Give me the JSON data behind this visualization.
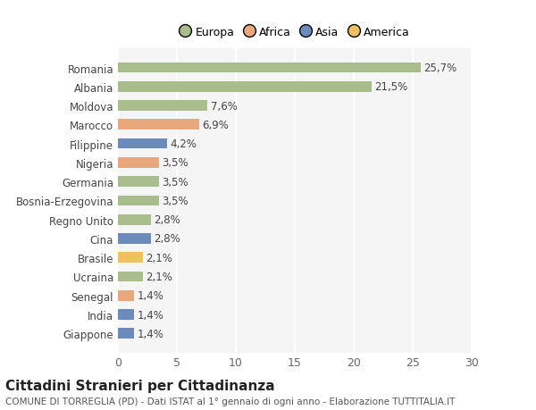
{
  "categories": [
    "Giappone",
    "India",
    "Senegal",
    "Ucraina",
    "Brasile",
    "Cina",
    "Regno Unito",
    "Bosnia-Erzegovina",
    "Germania",
    "Nigeria",
    "Filippine",
    "Marocco",
    "Moldova",
    "Albania",
    "Romania"
  ],
  "values": [
    1.4,
    1.4,
    1.4,
    2.1,
    2.1,
    2.8,
    2.8,
    3.5,
    3.5,
    3.5,
    4.2,
    6.9,
    7.6,
    21.5,
    25.7
  ],
  "labels": [
    "1,4%",
    "1,4%",
    "1,4%",
    "2,1%",
    "2,1%",
    "2,8%",
    "2,8%",
    "3,5%",
    "3,5%",
    "3,5%",
    "4,2%",
    "6,9%",
    "7,6%",
    "21,5%",
    "25,7%"
  ],
  "colors": [
    "#6b8cba",
    "#6b8cba",
    "#e8a87c",
    "#a8bc8c",
    "#f0c060",
    "#6b8cba",
    "#a8bc8c",
    "#a8bc8c",
    "#a8bc8c",
    "#e8a87c",
    "#6b8cba",
    "#e8a87c",
    "#a8bc8c",
    "#a8bc8c",
    "#a8bc8c"
  ],
  "legend": [
    {
      "label": "Europa",
      "color": "#a8bc8c"
    },
    {
      "label": "Africa",
      "color": "#e8a87c"
    },
    {
      "label": "Asia",
      "color": "#6b8cba"
    },
    {
      "label": "America",
      "color": "#f0c060"
    }
  ],
  "xlim": [
    0,
    30
  ],
  "xticks": [
    0,
    5,
    10,
    15,
    20,
    25,
    30
  ],
  "title": "Cittadini Stranieri per Cittadinanza",
  "subtitle": "COMUNE DI TORREGLIA (PD) - Dati ISTAT al 1° gennaio di ogni anno - Elaborazione TUTTITALIA.IT",
  "bg_color": "#ffffff",
  "plot_bg_color": "#f5f5f5",
  "bar_height": 0.55,
  "label_fontsize": 8.5,
  "ytick_fontsize": 8.5,
  "xtick_fontsize": 9,
  "title_fontsize": 11,
  "subtitle_fontsize": 7.5
}
